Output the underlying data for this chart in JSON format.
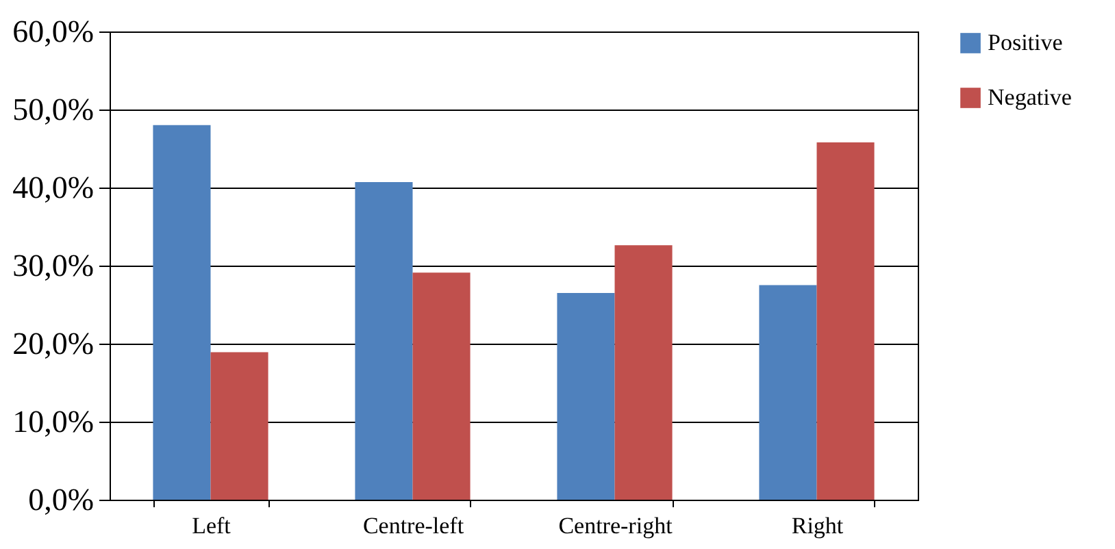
{
  "chart_data": {
    "type": "bar",
    "categories": [
      "Left",
      "Centre-left",
      "Centre-right",
      "Right"
    ],
    "series": [
      {
        "name": "Positive",
        "color": "#4f81bd",
        "values": [
          48.0,
          40.7,
          26.5,
          27.5
        ]
      },
      {
        "name": "Negative",
        "color": "#c0504d",
        "values": [
          18.9,
          29.1,
          32.6,
          45.8
        ]
      }
    ],
    "ylim": [
      0,
      60
    ],
    "yticks": [
      {
        "value": 0,
        "label": "0,0%"
      },
      {
        "value": 10,
        "label": "10,0%"
      },
      {
        "value": 20,
        "label": "20,0%"
      },
      {
        "value": 30,
        "label": "30,0%"
      },
      {
        "value": 40,
        "label": "40,0%"
      },
      {
        "value": 50,
        "label": "50,0%"
      },
      {
        "value": 60,
        "label": "60,0%"
      }
    ],
    "grid": "y",
    "legend": "right"
  }
}
